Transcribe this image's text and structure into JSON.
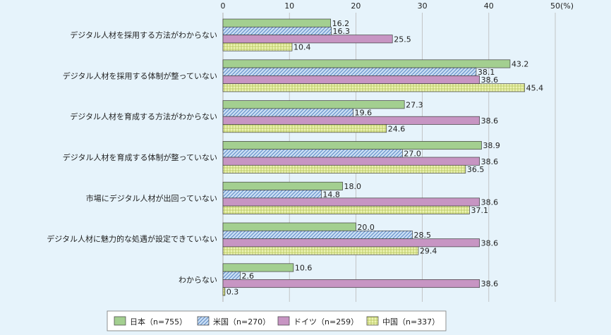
{
  "chart_data": {
    "type": "bar",
    "orientation": "horizontal",
    "title": "",
    "xlabel": "",
    "ylabel": "",
    "xlim": [
      0,
      50
    ],
    "x_ticks": [
      "0",
      "10",
      "20",
      "30",
      "40",
      "50"
    ],
    "unit_label": "(%)",
    "grid": true,
    "legend_position": "bottom",
    "categories": [
      "デジタル人材を採用する方法がわからない",
      "デジタル人材を採用する体制が整っていない",
      "デジタル人材を育成する方法がわからない",
      "デジタル人材を育成する体制が整っていない",
      "市場にデジタル人材が出回っていない",
      "デジタル人材に魅力的な処遇が設定できていない",
      "わからない"
    ],
    "series": [
      {
        "name": "日本（n=755）",
        "color": "#9fcc8e",
        "values": [
          16.2,
          43.2,
          27.3,
          38.9,
          18.0,
          20.0,
          10.6
        ],
        "labels": [
          "16.2",
          "43.2",
          "27.3",
          "38.9",
          "18.0",
          "20.0",
          "10.6"
        ]
      },
      {
        "name": "米国（n=270）",
        "color": "#b9d4f0",
        "values": [
          16.3,
          38.1,
          19.6,
          27.0,
          14.8,
          28.5,
          2.6
        ],
        "labels": [
          "16.3",
          "38.1",
          "19.6",
          "27.0",
          "14.8",
          "28.5",
          "2.6"
        ]
      },
      {
        "name": "ドイツ（n=259）",
        "color": "#c993c6",
        "values": [
          25.5,
          38.6,
          38.6,
          38.6,
          38.6,
          38.6,
          38.6
        ],
        "labels": [
          "25.5",
          "38.6",
          "38.6",
          "38.6",
          "38.6",
          "38.6",
          "38.6"
        ]
      },
      {
        "name": "中国（n=337）",
        "color": "#e6f0a6",
        "values": [
          10.4,
          45.4,
          24.6,
          36.5,
          37.1,
          29.4,
          0.3
        ],
        "labels": [
          "10.4",
          "45.4",
          "24.6",
          "36.5",
          "37.1",
          "29.4",
          "0.3"
        ]
      }
    ]
  }
}
